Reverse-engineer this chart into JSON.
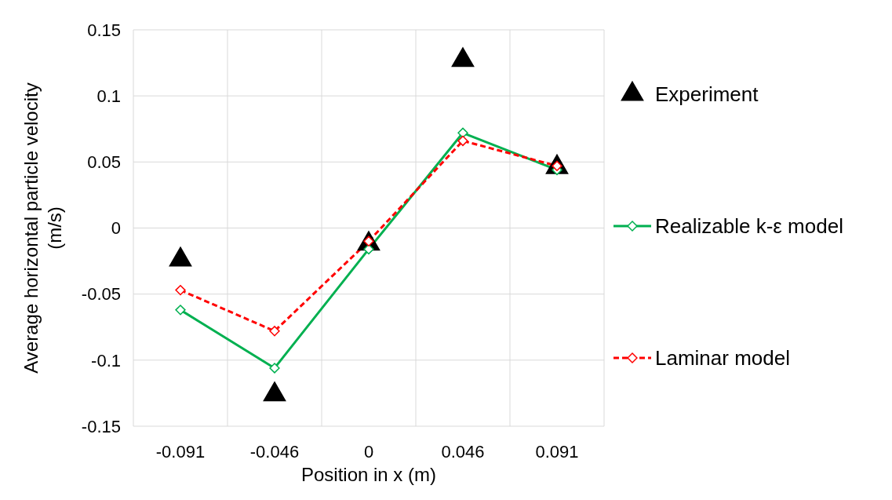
{
  "chart_data": {
    "type": "line",
    "xlabel": "Position in x (m)",
    "ylabel": "Average horizontal particle velocity (m/s)",
    "categories": [
      "-0.091",
      "-0.046",
      "0",
      "0.046",
      "0.091"
    ],
    "ylim": [
      -0.15,
      0.15
    ],
    "yticks": [
      -0.15,
      -0.1,
      -0.05,
      0,
      0.05,
      0.1,
      0.15
    ],
    "grid": true,
    "legend": "right",
    "series": [
      {
        "name": "Experiment",
        "type": "scatter",
        "color": "#000000",
        "marker": "triangle",
        "values": [
          -0.024,
          -0.126,
          -0.012,
          0.127,
          0.046
        ]
      },
      {
        "name": "Realizable k-ε model",
        "color": "#00b050",
        "marker": "diamond",
        "line_style": "solid",
        "values": [
          -0.062,
          -0.106,
          -0.016,
          0.072,
          0.044
        ]
      },
      {
        "name": "Laminar model",
        "color": "#ff0000",
        "marker": "diamond",
        "line_style": "dashed",
        "values": [
          -0.047,
          -0.078,
          -0.01,
          0.066,
          0.047
        ]
      }
    ]
  }
}
